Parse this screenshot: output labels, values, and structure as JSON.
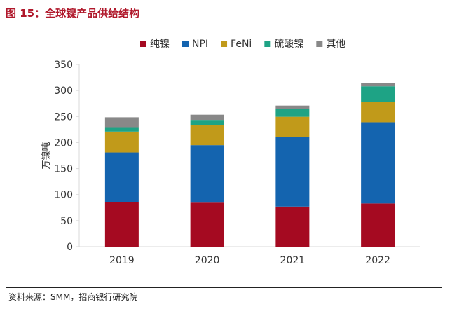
{
  "figure_title": "图 15：全球镍产品供给结构",
  "source": "资料来源：SMM，招商银行研究院",
  "chart_data": {
    "type": "bar",
    "stacked": true,
    "categories": [
      "2019",
      "2020",
      "2021",
      "2022"
    ],
    "ylabel": "万镍吨",
    "ylim": [
      0,
      350
    ],
    "yticks": [
      0,
      50,
      100,
      150,
      200,
      250,
      300,
      350
    ],
    "legend_position": "top",
    "series": [
      {
        "name": "纯镍",
        "color": "#A50A21",
        "values": [
          85,
          84.5,
          77,
          83
        ]
      },
      {
        "name": "NPI",
        "color": "#1464AF",
        "values": [
          96,
          110.5,
          133,
          156
        ]
      },
      {
        "name": "FeNi",
        "color": "#C19A1A",
        "values": [
          40,
          39,
          39.5,
          38.5
        ]
      },
      {
        "name": "硫酸镍",
        "color": "#1EA385",
        "values": [
          8.5,
          9.5,
          14.5,
          30.5
        ]
      },
      {
        "name": "其他",
        "color": "#888888",
        "values": [
          19,
          10,
          7,
          7
        ]
      }
    ]
  }
}
